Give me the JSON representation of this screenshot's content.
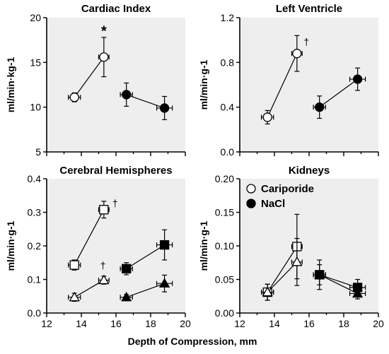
{
  "chart_data": [
    {
      "type": "scatter",
      "title": "Cardiac Index",
      "ylabel": "ml/min·kg-1",
      "xlim": [
        12,
        20
      ],
      "ylim": [
        5,
        20
      ],
      "yticks": [
        "5",
        "10",
        "15",
        "20"
      ],
      "xticks": [],
      "grid": false,
      "series": [
        {
          "name": "Cariporide",
          "marker": "circle",
          "fill": "open",
          "points": [
            {
              "x": 13.6,
              "y": 11.1,
              "xerr": 0.35,
              "yerr": 0.5
            },
            {
              "x": 15.3,
              "y": 15.6,
              "xerr": 0.3,
              "yerr": 2.2
            }
          ]
        },
        {
          "name": "NaCl",
          "marker": "circle",
          "fill": "filled",
          "points": [
            {
              "x": 16.6,
              "y": 11.4,
              "xerr": 0.35,
              "yerr": 1.3
            },
            {
              "x": 18.8,
              "y": 9.9,
              "xerr": 0.45,
              "yerr": 1.3
            }
          ]
        }
      ],
      "annotations": [
        {
          "text": "*",
          "x": 15.3,
          "y": 18.6
        }
      ]
    },
    {
      "type": "scatter",
      "title": "Left Ventricle",
      "ylabel": "ml/min·g-1",
      "xlim": [
        12,
        20
      ],
      "ylim": [
        0,
        1.2
      ],
      "yticks": [
        "0.0",
        "0.4",
        "0.8",
        "1.2"
      ],
      "xticks": [],
      "grid": false,
      "series": [
        {
          "name": "Cariporide",
          "marker": "circle",
          "fill": "open",
          "points": [
            {
              "x": 13.6,
              "y": 0.31,
              "xerr": 0.35,
              "yerr": 0.06
            },
            {
              "x": 15.3,
              "y": 0.88,
              "xerr": 0.3,
              "yerr": 0.16
            }
          ]
        },
        {
          "name": "NaCl",
          "marker": "circle",
          "fill": "filled",
          "points": [
            {
              "x": 16.6,
              "y": 0.4,
              "xerr": 0.35,
              "yerr": 0.1
            },
            {
              "x": 18.8,
              "y": 0.65,
              "xerr": 0.45,
              "yerr": 0.1
            }
          ]
        }
      ],
      "annotations": [
        {
          "text": "†",
          "x": 15.85,
          "y": 0.98
        }
      ]
    },
    {
      "type": "scatter",
      "title": "Cerebral Hemispheres",
      "ylabel": "ml/min·g-1",
      "xlim": [
        12,
        20
      ],
      "ylim": [
        0,
        0.4
      ],
      "yticks": [
        "0.0",
        "0.1",
        "0.2",
        "0.3",
        "0.4"
      ],
      "xticks": [
        "12",
        "14",
        "16",
        "18",
        "20"
      ],
      "grid": false,
      "series": [
        {
          "name": "Cariporide",
          "marker": "square",
          "fill": "open",
          "points": [
            {
              "x": 13.6,
              "y": 0.143,
              "xerr": 0.35,
              "yerr": 0.015
            },
            {
              "x": 15.3,
              "y": 0.308,
              "xerr": 0.3,
              "yerr": 0.025
            }
          ]
        },
        {
          "name": "Cariporide",
          "marker": "triangle",
          "fill": "open",
          "points": [
            {
              "x": 13.6,
              "y": 0.047,
              "xerr": 0.35,
              "yerr": 0.012
            },
            {
              "x": 15.3,
              "y": 0.098,
              "xerr": 0.3,
              "yerr": 0.012
            }
          ]
        },
        {
          "name": "NaCl",
          "marker": "square",
          "fill": "filled",
          "points": [
            {
              "x": 16.6,
              "y": 0.132,
              "xerr": 0.35,
              "yerr": 0.018
            },
            {
              "x": 18.8,
              "y": 0.203,
              "xerr": 0.45,
              "yerr": 0.045
            }
          ]
        },
        {
          "name": "NaCl",
          "marker": "triangle",
          "fill": "filled",
          "points": [
            {
              "x": 16.6,
              "y": 0.047,
              "xerr": 0.35,
              "yerr": 0.008
            },
            {
              "x": 18.8,
              "y": 0.088,
              "xerr": 0.45,
              "yerr": 0.025
            }
          ]
        }
      ],
      "annotations": [
        {
          "text": "†",
          "x": 15.95,
          "y": 0.325
        },
        {
          "text": "†",
          "x": 15.25,
          "y": 0.14
        }
      ]
    },
    {
      "type": "scatter",
      "title": "Kidneys",
      "ylabel": "ml/min·g-1",
      "xlim": [
        12,
        20
      ],
      "ylim": [
        0,
        0.2
      ],
      "yticks": [
        "0.00",
        "0.05",
        "0.10",
        "0.15",
        "0.20"
      ],
      "xticks": [
        "12",
        "14",
        "16",
        "18",
        "20"
      ],
      "grid": false,
      "legend": {
        "position": "top-left",
        "entries": [
          {
            "label": "Cariporide",
            "fill": "open"
          },
          {
            "label": "NaCl",
            "fill": "filled"
          }
        ]
      },
      "series": [
        {
          "name": "Cariporide",
          "marker": "square",
          "fill": "open",
          "points": [
            {
              "x": 13.6,
              "y": 0.031,
              "xerr": 0.35,
              "yerr": 0.012
            },
            {
              "x": 15.3,
              "y": 0.099,
              "xerr": 0.3,
              "yerr": 0.048
            }
          ]
        },
        {
          "name": "Cariporide",
          "marker": "triangle",
          "fill": "open",
          "points": [
            {
              "x": 13.6,
              "y": 0.031,
              "xerr": 0.35,
              "yerr": 0.012
            },
            {
              "x": 15.3,
              "y": 0.076,
              "xerr": 0.3,
              "yerr": 0.035
            }
          ]
        },
        {
          "name": "NaCl",
          "marker": "square",
          "fill": "filled",
          "points": [
            {
              "x": 16.6,
              "y": 0.057,
              "xerr": 0.35,
              "yerr": 0.022
            },
            {
              "x": 18.8,
              "y": 0.038,
              "xerr": 0.45,
              "yerr": 0.012
            }
          ]
        },
        {
          "name": "NaCl",
          "marker": "triangle",
          "fill": "filled",
          "points": [
            {
              "x": 16.6,
              "y": 0.057,
              "xerr": 0.35,
              "yerr": 0.015
            },
            {
              "x": 18.8,
              "y": 0.029,
              "xerr": 0.45,
              "yerr": 0.008
            }
          ]
        }
      ],
      "annotations": []
    }
  ],
  "xlabel": "Depth of Compression, mm",
  "colors": {
    "panel_bg": "#eeeeee",
    "ink": "#000000",
    "open_fill": "#ffffff"
  }
}
